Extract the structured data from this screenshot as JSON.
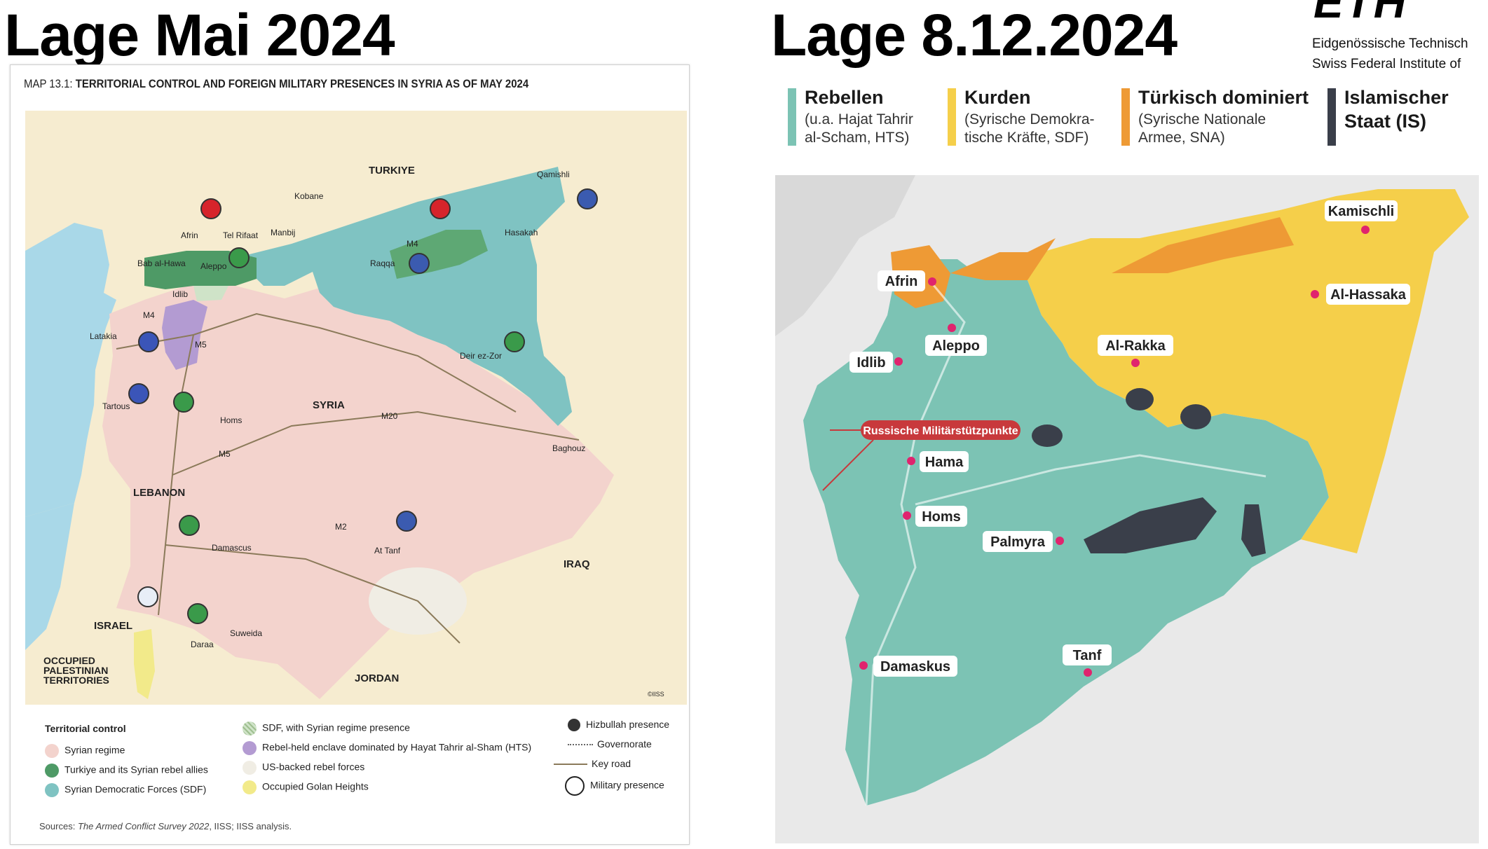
{
  "headings": {
    "left": "Lage Mai 2024",
    "right": "Lage 8.12.2024"
  },
  "eth": {
    "logo": "ETH",
    "line1": "Eidgenössische Technisch",
    "line2": "Swiss Federal Institute of"
  },
  "left_map": {
    "title_prefix": "MAP 13.1:",
    "title": "TERRITORIAL CONTROL AND FOREIGN MILITARY PRESENCES IN SYRIA AS OF MAY 2024",
    "labels": {
      "turkiye": "TURKIYE",
      "syria": "SYRIA",
      "lebanon": "LEBANON",
      "iraq": "IRAQ",
      "israel": "ISRAEL",
      "jordan": "JORDAN",
      "opt1": "OCCUPIED",
      "opt2": "PALESTINIAN",
      "opt3": "TERRITORIES"
    },
    "cities": {
      "qamishli": "Qamishli",
      "kobane": "Kobane",
      "afrin": "Afrin",
      "tel_rifaat": "Tel Rifaat",
      "manbij": "Manbij",
      "hasakah": "Hasakah",
      "bab_al_hawa": "Bab al-Hawa",
      "aleppo": "Aleppo",
      "idlib": "Idlib",
      "raqqa": "Raqqa",
      "latakia": "Latakia",
      "deir_ez_zor": "Deir ez-Zor",
      "tartous": "Tartous",
      "homs": "Homs",
      "baghouz": "Baghouz",
      "damascus": "Damascus",
      "at_tanf": "At Tanf",
      "suweida": "Suweida",
      "daraa": "Daraa"
    },
    "roads": {
      "m4a": "M4",
      "m4b": "M4",
      "m5a": "M5",
      "m5b": "M5",
      "m20": "M20",
      "m2": "M2"
    },
    "copyright": "©IISS",
    "legend_title": "Territorial control",
    "legend": {
      "regime": "Syrian regime",
      "turkiye": "Turkiye and its Syrian rebel allies",
      "sdf": "Syrian Democratic Forces (SDF)",
      "sdf_regime": "SDF, with Syrian regime presence",
      "hts": "Rebel-held enclave dominated by Hayat Tahrir al-Sham (HTS)",
      "us_backed": "US-backed rebel forces",
      "golan": "Occupied Golan Heights",
      "hizbullah": "Hizbullah presence",
      "governorate": "Governorate",
      "key_road": "Key road",
      "military": "Military presence"
    },
    "sources_label": "Sources:",
    "sources_title": "The Armed Conflict Survey 2022",
    "sources_rest": ", IISS; IISS analysis.",
    "colors": {
      "regime": "#f3d3cd",
      "turkiye": "#4e9a66",
      "sdf": "#7fc3c2",
      "hts": "#b39bd2",
      "us_backed": "#f0ede4",
      "golan": "#f2ea8a",
      "sea": "#a9d8e8",
      "land": "#f6ecd0"
    }
  },
  "right_map": {
    "legend": [
      {
        "title": "Rebellen",
        "sub1": "(u.a. Hajat Tahrir",
        "sub2": "al-Scham, HTS)",
        "color": "#7cc3b4"
      },
      {
        "title": "Kurden",
        "sub1": "(Syrische Demokra-",
        "sub2": "tische Kräfte, SDF)",
        "color": "#f5cf4a"
      },
      {
        "title": "Türkisch dominiert",
        "sub1": "(Syrische Nationale",
        "sub2": "Armee, SNA)",
        "color": "#ee9a35"
      },
      {
        "title": "Islamischer",
        "sub1": "Staat (IS)",
        "sub2": "",
        "color": "#3a3f4a"
      }
    ],
    "cities": {
      "kamischli": "Kamischli",
      "afrin": "Afrin",
      "al_hassaka": "Al-Hassaka",
      "aleppo": "Aleppo",
      "idlib": "Idlib",
      "al_rakka": "Al-Rakka",
      "hama": "Hama",
      "homs": "Homs",
      "palmyra": "Palmyra",
      "damaskus": "Damaskus",
      "tanf": "Tanf"
    },
    "callout": "Russische Militärstützpunkte",
    "colors": {
      "rebels": "#7cc3b4",
      "kurds": "#f5cf4a",
      "turkish": "#ee9a35",
      "is": "#3a3f4a",
      "city": "#e0246e",
      "callout": "#c8393c"
    }
  }
}
